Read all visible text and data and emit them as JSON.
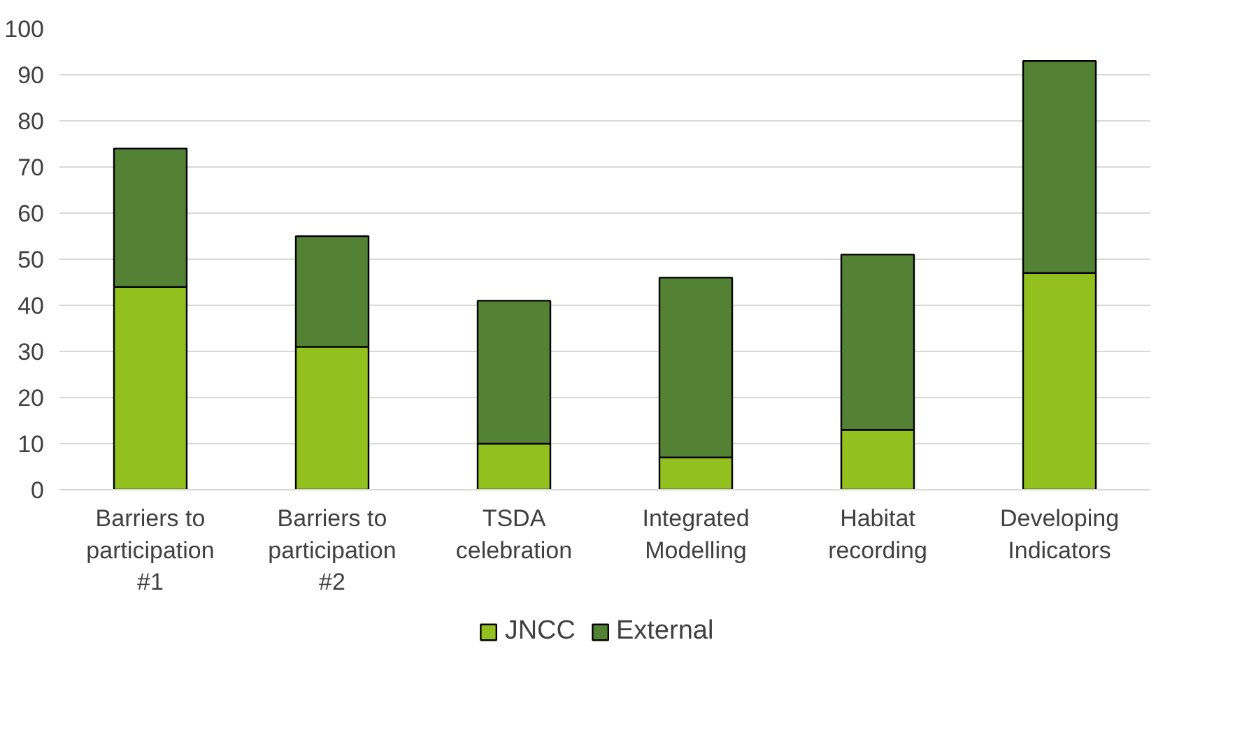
{
  "chart_data": {
    "type": "bar",
    "stacked": true,
    "categories": [
      "Barriers to participation #1",
      "Barriers to participation #2",
      "TSDA celebration",
      "Integrated Modelling",
      "Habitat recording",
      "Developing Indicators"
    ],
    "series": [
      {
        "name": "JNCC",
        "color": "#92c01f",
        "values": [
          44,
          31,
          10,
          7,
          13,
          47
        ]
      },
      {
        "name": "External",
        "color": "#548235",
        "values": [
          30,
          24,
          31,
          39,
          38,
          46
        ]
      }
    ],
    "ylim": [
      0,
      100
    ],
    "yticks": [
      0,
      10,
      20,
      30,
      40,
      50,
      60,
      70,
      80,
      90,
      100
    ],
    "grid": "y",
    "legend": "bottom"
  }
}
